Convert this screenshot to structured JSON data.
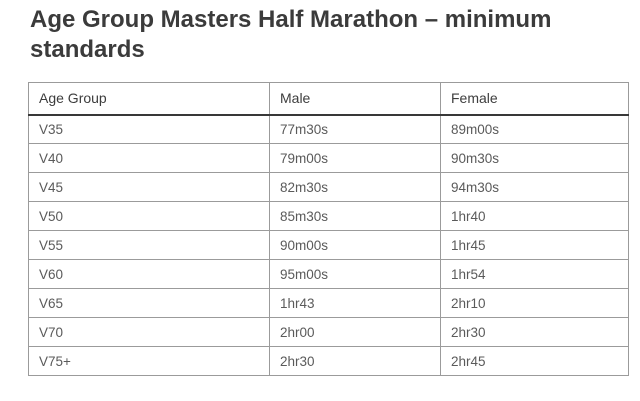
{
  "page": {
    "title": "Age Group Masters Half Marathon – minimum standards"
  },
  "table": {
    "columns": [
      "Age Group",
      "Male",
      "Female"
    ],
    "rows": [
      {
        "age_group": "V35",
        "male": "77m30s",
        "female": "89m00s"
      },
      {
        "age_group": "V40",
        "male": "79m00s",
        "female": "90m30s"
      },
      {
        "age_group": "V45",
        "male": "82m30s",
        "female": "94m30s"
      },
      {
        "age_group": "V50",
        "male": "85m30s",
        "female": "1hr40"
      },
      {
        "age_group": "V55",
        "male": "90m00s",
        "female": "1hr45"
      },
      {
        "age_group": "V60",
        "male": "95m00s",
        "female": "1hr54"
      },
      {
        "age_group": "V65",
        "male": "1hr43",
        "female": "2hr10"
      },
      {
        "age_group": "V70",
        "male": "2hr00",
        "female": "2hr30"
      },
      {
        "age_group": "V75+",
        "male": "2hr30",
        "female": "2hr45"
      }
    ]
  },
  "colors": {
    "title_text": "#3b3b3b",
    "header_text": "#3d3d3d",
    "cell_text": "#5a5a5a",
    "grid_border": "#9b9b9b",
    "header_rule": "#383838",
    "background": "#ffffff"
  }
}
